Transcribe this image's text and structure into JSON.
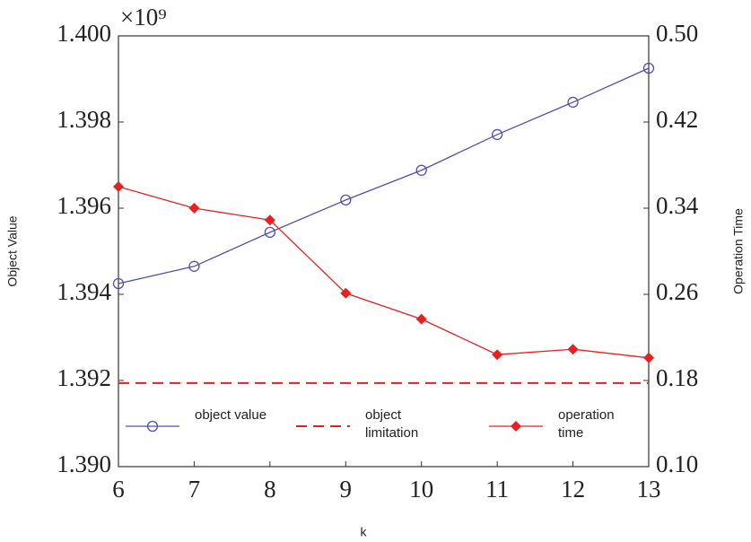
{
  "chart_data": {
    "type": "line",
    "axis_multiplier": "×10⁹",
    "x_label": "k",
    "y_label": "Object Value",
    "y2_label": "Operation Time",
    "x": [
      6,
      7,
      8,
      9,
      10,
      11,
      12,
      13
    ],
    "xlim": [
      6,
      13
    ],
    "xticks": [
      6,
      7,
      8,
      9,
      10,
      11,
      12,
      13
    ],
    "ylim": [
      1.39,
      1.4
    ],
    "yticks": [
      {
        "value": 1.39,
        "label": "1.390"
      },
      1.392,
      1.394,
      1.396,
      1.398,
      {
        "value": 1.4,
        "label": "1.400"
      }
    ],
    "y2lim": [
      0.1,
      0.5
    ],
    "y2ticks": [
      {
        "value": 0.1,
        "label": "0.10"
      },
      0.18,
      0.26,
      0.34,
      0.42,
      {
        "value": 0.5,
        "label": "0.50"
      }
    ],
    "series": [
      {
        "name": "object value",
        "color": "#5050b4",
        "marker": "circle",
        "line_style": "solid",
        "values": [
          1.39425,
          1.39465,
          1.39544,
          1.39619,
          1.39688,
          1.39771,
          1.39846,
          1.39925
        ]
      },
      {
        "name": "object limitation",
        "color": "#e02020",
        "marker": "none",
        "line_style": "dashed",
        "values": [
          1.39194,
          1.39194,
          1.39194,
          1.39194,
          1.39194,
          1.39194,
          1.39194,
          1.39194
        ]
      },
      {
        "name": "operation time",
        "color": "#e82020",
        "marker": "diamond",
        "line_style": "solid",
        "axis": "y2",
        "values": [
          0.36,
          0.34,
          0.329,
          0.261,
          0.237,
          0.204,
          0.209,
          0.201
        ]
      }
    ]
  }
}
